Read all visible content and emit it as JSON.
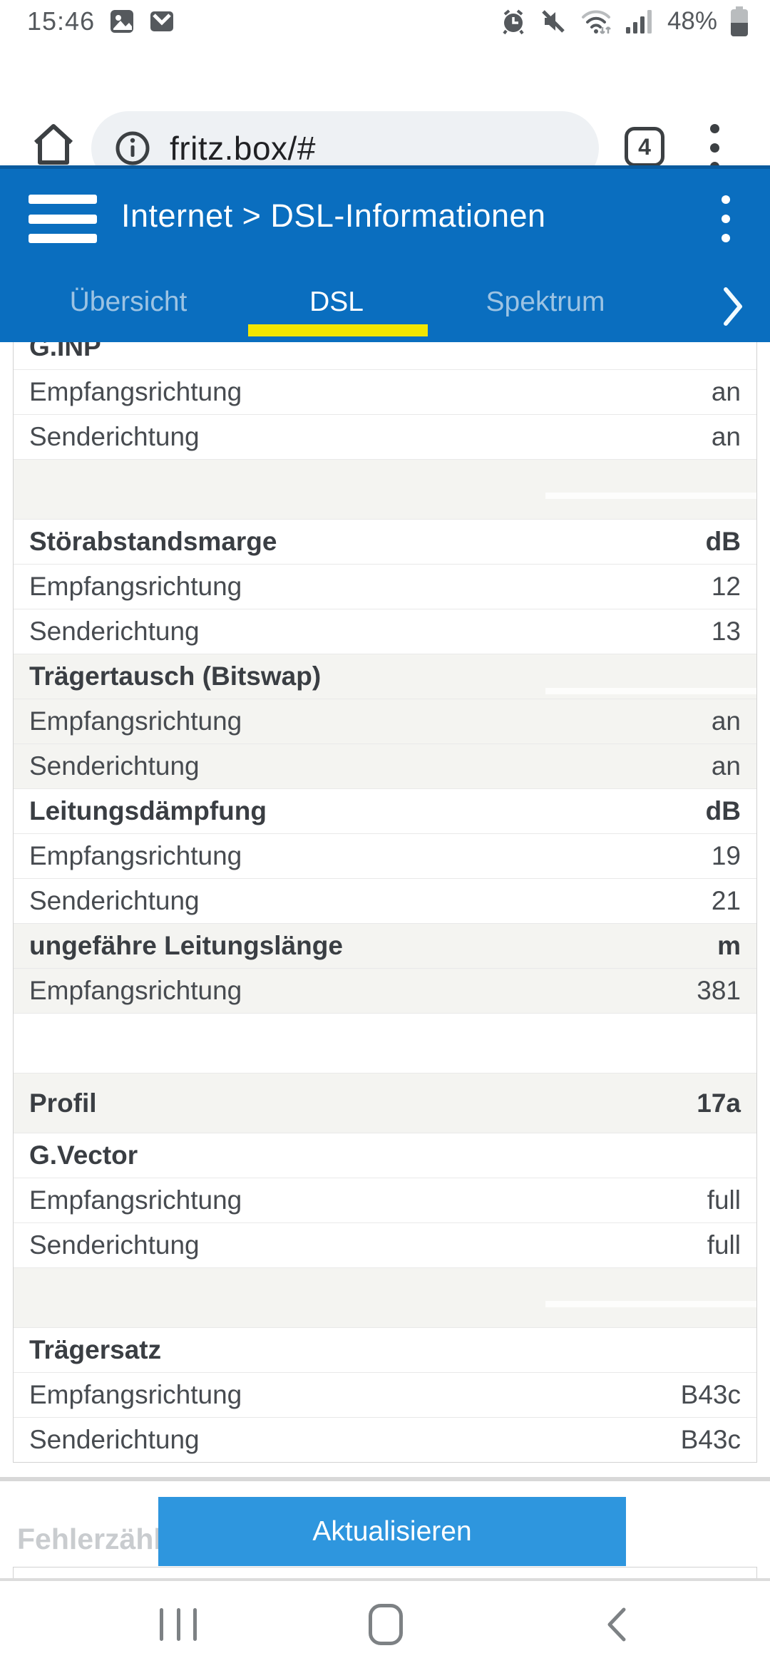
{
  "colors": {
    "header_blue": "#0a6ebf",
    "header_strip": "#085a9e",
    "button_blue": "#2e96de",
    "tab_underline_yellow": "#f2e600",
    "shaded_row": "#f4f4f1"
  },
  "status_bar": {
    "time": "15:46",
    "battery_percent": "48%",
    "left_icons": [
      "gallery-icon",
      "gmail-icon"
    ],
    "right_icons": [
      "alarm-icon",
      "mute-icon",
      "wifi-icon",
      "signal-icon",
      "battery-icon"
    ]
  },
  "browser": {
    "url": "fritz.box/#",
    "tab_count": "4"
  },
  "app_header": {
    "title": "Internet > DSL-Informationen"
  },
  "tab_bar": {
    "tabs": [
      {
        "label": "Übersicht",
        "active": false
      },
      {
        "label": "DSL",
        "active": true
      },
      {
        "label": "Spektrum",
        "active": false
      }
    ]
  },
  "dsl_table": {
    "rows": [
      {
        "type": "header",
        "label": "G.INP",
        "value": "",
        "shaded": false
      },
      {
        "type": "data",
        "label": "Empfangsrichtung",
        "value": "an",
        "shaded": false
      },
      {
        "type": "data",
        "label": "Senderichtung",
        "value": "an",
        "shaded": false
      },
      {
        "type": "spacer",
        "shaded": true,
        "stripe": true
      },
      {
        "type": "header",
        "label": "Störabstandsmarge",
        "value": "dB",
        "shaded": false
      },
      {
        "type": "data",
        "label": "Empfangsrichtung",
        "value": "12",
        "shaded": false
      },
      {
        "type": "data",
        "label": "Senderichtung",
        "value": "13",
        "shaded": false
      },
      {
        "type": "header",
        "label": "Trägertausch (Bitswap)",
        "value": "",
        "shaded": true,
        "stripe": true
      },
      {
        "type": "data",
        "label": "Empfangsrichtung",
        "value": "an",
        "shaded": true
      },
      {
        "type": "data",
        "label": "Senderichtung",
        "value": "an",
        "shaded": true
      },
      {
        "type": "header",
        "label": "Leitungsdämpfung",
        "value": "dB",
        "shaded": false
      },
      {
        "type": "data",
        "label": "Empfangsrichtung",
        "value": "19",
        "shaded": false
      },
      {
        "type": "data",
        "label": "Senderichtung",
        "value": "21",
        "shaded": false
      },
      {
        "type": "header",
        "label": "ungefähre Leitungslänge",
        "value": "m",
        "shaded": true
      },
      {
        "type": "data",
        "label": "Empfangsrichtung",
        "value": "381",
        "shaded": true
      },
      {
        "type": "spacer",
        "shaded": false
      },
      {
        "type": "header",
        "label": "Profil",
        "value": "17a",
        "shaded": true,
        "tall": true
      },
      {
        "type": "header",
        "label": "G.Vector",
        "value": "",
        "shaded": false
      },
      {
        "type": "data",
        "label": "Empfangsrichtung",
        "value": "full",
        "shaded": false
      },
      {
        "type": "data",
        "label": "Senderichtung",
        "value": "full",
        "shaded": false
      },
      {
        "type": "spacer",
        "shaded": true,
        "stripe": true
      },
      {
        "type": "header",
        "label": "Trägersatz",
        "value": "",
        "shaded": false
      },
      {
        "type": "data",
        "label": "Empfangsrichtung",
        "value": "B43c",
        "shaded": false
      },
      {
        "type": "data",
        "label": "Senderichtung",
        "value": "B43c",
        "shaded": false
      }
    ]
  },
  "footer": {
    "section_title": "Fehlerzähler",
    "refresh_button_label": "Aktualisieren"
  },
  "nav_bar": {
    "icons": [
      "recents-icon",
      "home-icon",
      "back-icon"
    ]
  }
}
